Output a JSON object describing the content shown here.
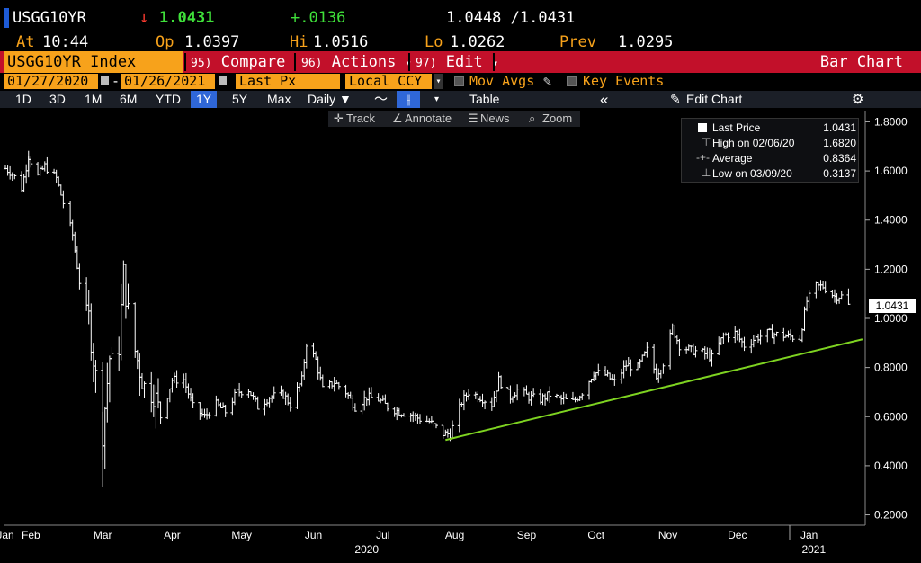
{
  "header": {
    "ticker": "USGG10YR",
    "arrow": "↓",
    "last": "1.0431",
    "change": "+.0136",
    "bid_ask": "1.0448 /1.0431",
    "at_label": "At",
    "time": "10:44",
    "op_label": "Op",
    "open": "1.0397",
    "hi_label": "Hi",
    "high": "1.0516",
    "lo_label": "Lo",
    "low": "1.0262",
    "prev_label": "Prev",
    "prev": "1.0295"
  },
  "menubar": {
    "index_label": "USGG10YR Index",
    "compare_fn": "95)",
    "compare_label": "Compare",
    "actions_fn": "96)",
    "actions_label": "Actions",
    "edit_fn": "97)",
    "edit_label": "Edit",
    "caret": "▾",
    "chart_type": "Bar Chart"
  },
  "controls": {
    "start_date": "01/27/2020",
    "end_date": "01/26/2021",
    "field": "Last Px",
    "currency": "Local CCY",
    "mov_avgs": "Mov Avgs",
    "key_events": "Key Events"
  },
  "periods": {
    "items": [
      "1D",
      "3D",
      "1M",
      "6M",
      "YTD",
      "1Y",
      "5Y",
      "Max"
    ],
    "active": "1Y",
    "frequency": "Daily ▼",
    "table": "Table",
    "collapse": "«",
    "edit_chart": "Edit Chart"
  },
  "toolbar": {
    "track": "Track",
    "annotate": "Annotate",
    "news": "News",
    "zoom": "Zoom"
  },
  "legend": {
    "last_price_label": "Last Price",
    "last_price_value": "1.0431",
    "high_label": "High on 02/06/20",
    "high_value": "1.6820",
    "average_label": "Average",
    "average_value": "0.8364",
    "low_label": "Low on 03/09/20",
    "low_value": "0.3137"
  },
  "last_tag": "1.0431",
  "colors": {
    "orange": "#f7a21b",
    "menu_red": "#c2102a",
    "active_blue": "#2f67d8",
    "trend_green": "#7ed321",
    "bars": "#ffffff"
  },
  "chart_data": {
    "type": "bar",
    "style": "ohlc",
    "yticks": [
      "1.8000",
      "1.6000",
      "1.4000",
      "1.2000",
      "1.0000",
      "0.8000",
      "0.6000",
      "0.4000",
      "0.2000"
    ],
    "ylim": [
      0.18,
      1.82
    ],
    "month_labels": [
      "Jan",
      "Feb",
      "Mar",
      "Apr",
      "May",
      "Jun",
      "Jul",
      "Aug",
      "Sep",
      "Oct",
      "Nov",
      "Dec",
      "Jan"
    ],
    "year_labels": [
      "2020",
      "2021"
    ],
    "series": [
      {
        "points": [
          [
            "2020-01-27",
            1.61
          ],
          [
            "2020-01-30",
            1.59
          ],
          [
            "2020-02-03",
            1.53
          ],
          [
            "2020-02-06",
            1.66
          ],
          [
            "2020-02-10",
            1.58
          ],
          [
            "2020-02-13",
            1.62
          ],
          [
            "2020-02-18",
            1.57
          ],
          [
            "2020-02-21",
            1.47
          ],
          [
            "2020-02-25",
            1.34
          ],
          [
            "2020-02-28",
            1.15
          ],
          [
            "2020-03-03",
            1.0
          ],
          [
            "2020-03-06",
            0.76
          ],
          [
            "2020-03-09",
            0.54
          ],
          [
            "2020-03-12",
            0.84
          ],
          [
            "2020-03-15",
            0.75
          ],
          [
            "2020-03-18",
            1.18
          ],
          [
            "2020-03-21",
            0.94
          ],
          [
            "2020-03-24",
            0.83
          ],
          [
            "2020-03-27",
            0.72
          ],
          [
            "2020-03-31",
            0.7
          ],
          [
            "2020-04-03",
            0.6
          ],
          [
            "2020-04-08",
            0.75
          ],
          [
            "2020-04-13",
            0.75
          ],
          [
            "2020-04-17",
            0.64
          ],
          [
            "2020-04-22",
            0.6
          ],
          [
            "2020-04-27",
            0.65
          ],
          [
            "2020-05-01",
            0.62
          ],
          [
            "2020-05-06",
            0.7
          ],
          [
            "2020-05-11",
            0.71
          ],
          [
            "2020-05-15",
            0.64
          ],
          [
            "2020-05-20",
            0.68
          ],
          [
            "2020-05-26",
            0.69
          ],
          [
            "2020-05-29",
            0.65
          ],
          [
            "2020-06-03",
            0.75
          ],
          [
            "2020-06-05",
            0.9
          ],
          [
            "2020-06-09",
            0.83
          ],
          [
            "2020-06-12",
            0.71
          ],
          [
            "2020-06-17",
            0.74
          ],
          [
            "2020-06-22",
            0.7
          ],
          [
            "2020-06-26",
            0.64
          ],
          [
            "2020-07-01",
            0.68
          ],
          [
            "2020-07-06",
            0.67
          ],
          [
            "2020-07-10",
            0.64
          ],
          [
            "2020-07-15",
            0.62
          ],
          [
            "2020-07-20",
            0.61
          ],
          [
            "2020-07-24",
            0.59
          ],
          [
            "2020-07-28",
            0.58
          ],
          [
            "2020-08-03",
            0.53
          ],
          [
            "2020-08-06",
            0.53
          ],
          [
            "2020-08-11",
            0.66
          ],
          [
            "2020-08-14",
            0.7
          ],
          [
            "2020-08-19",
            0.68
          ],
          [
            "2020-08-24",
            0.65
          ],
          [
            "2020-08-27",
            0.75
          ],
          [
            "2020-09-01",
            0.68
          ],
          [
            "2020-09-04",
            0.71
          ],
          [
            "2020-09-09",
            0.68
          ],
          [
            "2020-09-14",
            0.67
          ],
          [
            "2020-09-18",
            0.69
          ],
          [
            "2020-09-23",
            0.67
          ],
          [
            "2020-09-28",
            0.66
          ],
          [
            "2020-10-02",
            0.7
          ],
          [
            "2020-10-07",
            0.78
          ],
          [
            "2020-10-12",
            0.77
          ],
          [
            "2020-10-16",
            0.74
          ],
          [
            "2020-10-21",
            0.81
          ],
          [
            "2020-10-26",
            0.8
          ],
          [
            "2020-10-30",
            0.87
          ],
          [
            "2020-11-03",
            0.77
          ],
          [
            "2020-11-06",
            0.82
          ],
          [
            "2020-11-10",
            0.96
          ],
          [
            "2020-11-13",
            0.89
          ],
          [
            "2020-11-18",
            0.87
          ],
          [
            "2020-11-23",
            0.86
          ],
          [
            "2020-11-27",
            0.84
          ],
          [
            "2020-12-02",
            0.93
          ],
          [
            "2020-12-07",
            0.94
          ],
          [
            "2020-12-11",
            0.89
          ],
          [
            "2020-12-16",
            0.92
          ],
          [
            "2020-12-21",
            0.94
          ],
          [
            "2020-12-28",
            0.93
          ],
          [
            "2021-01-04",
            0.92
          ],
          [
            "2021-01-07",
            1.07
          ],
          [
            "2021-01-11",
            1.13
          ],
          [
            "2021-01-14",
            1.13
          ],
          [
            "2021-01-19",
            1.09
          ],
          [
            "2021-01-22",
            1.09
          ],
          [
            "2021-01-26",
            1.04
          ]
        ]
      }
    ],
    "trendline": {
      "start": [
        "2020-08-04",
        0.505
      ],
      "end": [
        "2021-01-31",
        0.915
      ]
    },
    "grid": false
  }
}
